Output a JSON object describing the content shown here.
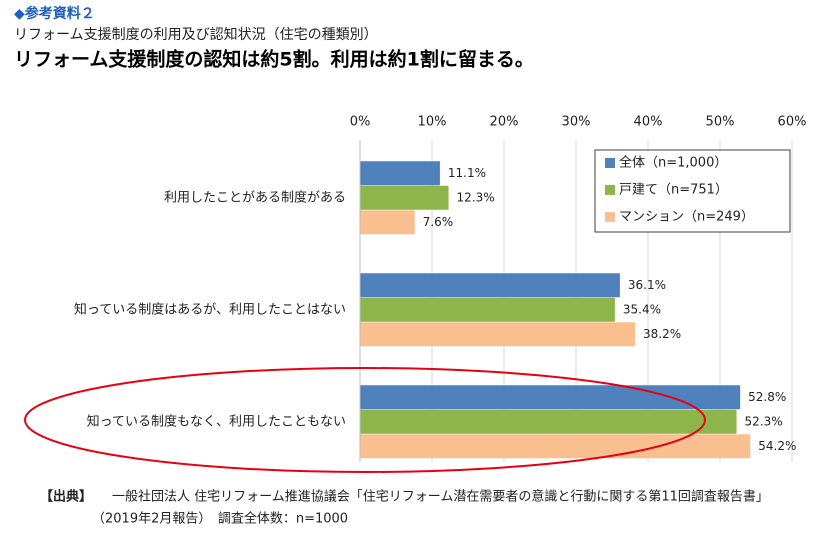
{
  "label": "◆参考資料２",
  "source_label": "【出典】",
  "source": [
    "一般社団法人 住宅リフォーム推進協議会「住宅リフォーム潜在需要者の意識と行動に関する第11回調査報告書」",
    "（2019年2月報告）　調査全体数：n=1000"
  ],
  "chart_data": {
    "type": "bar",
    "orientation": "horizontal",
    "subtitle": "リフォーム支援制度の利用及び認知状況（住宅の種類別）",
    "title": "リフォーム支援制度の認知は約5割。利用は約1割に留まる。",
    "categories": [
      "利用したことがある制度がある",
      "知っている制度はあるが、利用したことはない",
      "知っている制度もなく、利用したこともない"
    ],
    "series": [
      {
        "name": "全体（n=1,000）",
        "color": "#4f81bd",
        "values": [
          11.1,
          36.1,
          52.8
        ],
        "value_labels": [
          "11.1%",
          "36.1%",
          "52.8%"
        ]
      },
      {
        "name": "戸建て（n=751）",
        "color": "#8db54b",
        "values": [
          12.3,
          35.4,
          52.3
        ],
        "value_labels": [
          "12.3%",
          "35.4%",
          "52.3%"
        ]
      },
      {
        "name": "マンション（n=249）",
        "color": "#f9bf8f",
        "values": [
          7.6,
          38.2,
          54.2
        ],
        "value_labels": [
          "7.6%",
          "38.2%",
          "54.2%"
        ]
      }
    ],
    "xlim": [
      0,
      60
    ],
    "xticks": [
      {
        "value": 0,
        "label": "0%"
      },
      {
        "value": 10,
        "label": "10%"
      },
      {
        "value": 20,
        "label": "20%"
      },
      {
        "value": 30,
        "label": "30%"
      },
      {
        "value": 40,
        "label": "40%"
      },
      {
        "value": 50,
        "label": "50%"
      },
      {
        "value": 60,
        "label": "60%"
      }
    ],
    "grid": true,
    "legend": "upper right"
  }
}
